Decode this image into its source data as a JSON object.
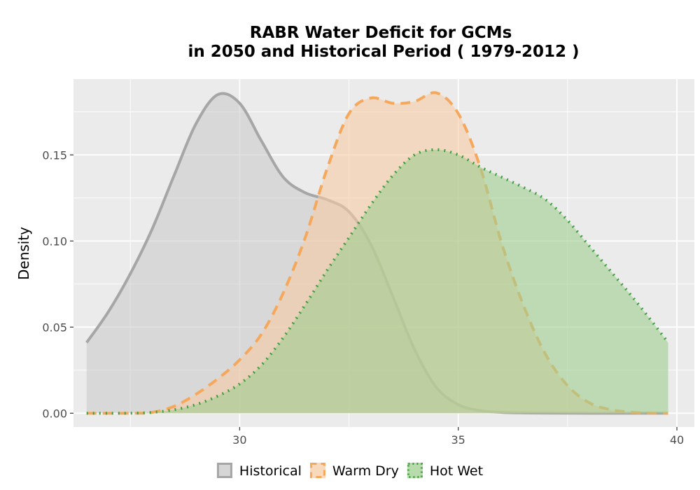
{
  "chart_data": {
    "type": "area",
    "title": [
      "RABR  Water Deficit for GCMs",
      "in 2050 and Historical Period ( 1979-2012 )"
    ],
    "xlabel": "",
    "ylabel": "Density",
    "xlim": [
      26.2,
      40.4
    ],
    "ylim": [
      -0.008,
      0.194
    ],
    "x_ticks": [
      30,
      35,
      40
    ],
    "x_tick_labels": [
      "30",
      "35",
      "40"
    ],
    "y_ticks": [
      0.0,
      0.05,
      0.1,
      0.15
    ],
    "y_tick_labels": [
      "0.00",
      "0.05",
      "0.10",
      "0.15"
    ],
    "grid": true,
    "legend_position": "bottom",
    "series": [
      {
        "name": "Historical",
        "line_color": "#a6a6a6",
        "fill_color": "#c8c8c8",
        "fill_opacity": 0.55,
        "dash": "solid",
        "x": [
          26.5,
          27.0,
          27.5,
          28.0,
          28.5,
          29.0,
          29.5,
          30.0,
          30.5,
          31.0,
          31.5,
          32.0,
          32.5,
          33.0,
          33.5,
          34.0,
          34.5,
          35.0,
          35.5,
          36.0,
          36.5,
          37.0,
          38.0,
          39.0,
          39.8
        ],
        "y": [
          0.041,
          0.059,
          0.081,
          0.107,
          0.138,
          0.168,
          0.185,
          0.18,
          0.158,
          0.137,
          0.128,
          0.124,
          0.117,
          0.098,
          0.068,
          0.037,
          0.015,
          0.005,
          0.0015,
          0.0005,
          0.0002,
          0.0001,
          0.0,
          0.0,
          0.0
        ]
      },
      {
        "name": "Warm Dry",
        "line_color": "#f5a85c",
        "fill_color": "#f6cca4",
        "fill_opacity": 0.6,
        "dash": "dashed",
        "x": [
          26.5,
          27.0,
          27.5,
          28.0,
          28.5,
          29.0,
          29.5,
          30.0,
          30.5,
          31.0,
          31.5,
          32.0,
          32.5,
          33.0,
          33.5,
          34.0,
          34.5,
          35.0,
          35.5,
          36.0,
          36.5,
          37.0,
          37.5,
          38.0,
          38.5,
          39.0,
          39.5,
          39.8
        ],
        "y": [
          0.0,
          0.0,
          0.0,
          0.0005,
          0.004,
          0.011,
          0.02,
          0.031,
          0.046,
          0.07,
          0.102,
          0.142,
          0.174,
          0.183,
          0.18,
          0.181,
          0.186,
          0.174,
          0.143,
          0.098,
          0.062,
          0.034,
          0.016,
          0.006,
          0.002,
          0.0005,
          0.0,
          0.0
        ]
      },
      {
        "name": "Hot Wet",
        "line_color": "#3f9e3f",
        "fill_color": "#9fcf8f",
        "fill_opacity": 0.6,
        "dash": "dotted",
        "x": [
          26.5,
          27.0,
          27.5,
          28.0,
          28.5,
          29.0,
          29.5,
          30.0,
          30.5,
          31.0,
          31.5,
          32.0,
          32.5,
          33.0,
          33.5,
          34.0,
          34.5,
          35.0,
          35.5,
          36.0,
          36.5,
          37.0,
          37.5,
          38.0,
          38.5,
          39.0,
          39.5,
          39.8
        ],
        "y": [
          0.0,
          0.0,
          0.0,
          0.0005,
          0.002,
          0.005,
          0.01,
          0.017,
          0.028,
          0.044,
          0.063,
          0.083,
          0.102,
          0.121,
          0.138,
          0.15,
          0.153,
          0.15,
          0.143,
          0.137,
          0.131,
          0.124,
          0.112,
          0.097,
          0.082,
          0.067,
          0.051,
          0.041
        ]
      }
    ]
  }
}
